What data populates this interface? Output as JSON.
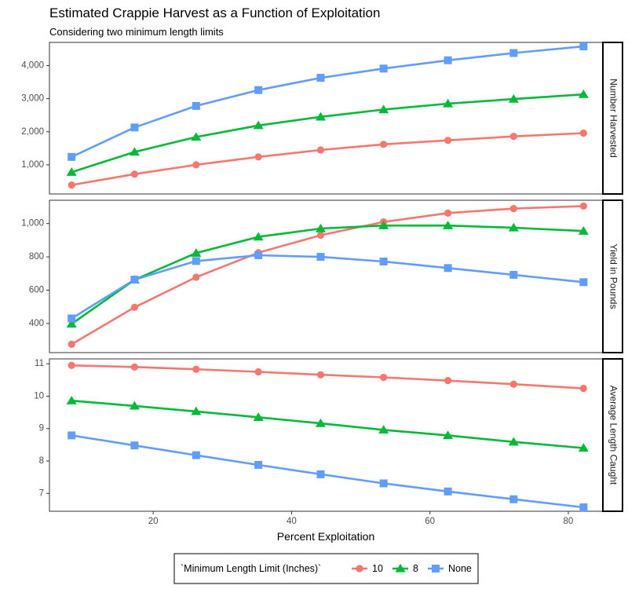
{
  "chart_data": {
    "type": "line",
    "title": "Estimated Crappie Harvest as a Function of Exploitation",
    "subtitle": "Considering two minimum length limits",
    "xlabel": "Percent Exploitation",
    "xlim": [
      5,
      85
    ],
    "x_ticks": [
      20,
      40,
      60,
      80
    ],
    "x": [
      8.2,
      17.3,
      26.2,
      35.2,
      44.2,
      53.3,
      62.6,
      72.1,
      82.2
    ],
    "legend": {
      "title": "`Minimum Length Limit (Inches)`",
      "position": "bottom",
      "entries": [
        "10",
        "8",
        "None"
      ]
    },
    "series_styles": [
      {
        "name": "10",
        "color": "#F8766D",
        "shape": "circle"
      },
      {
        "name": "8",
        "color": "#00BA38",
        "shape": "triangle"
      },
      {
        "name": "None",
        "color": "#619CFF",
        "shape": "square"
      }
    ],
    "panels": [
      {
        "strip": "Number Harvested",
        "ylim": [
          120,
          4700
        ],
        "y_ticks": [
          1000,
          2000,
          3000,
          4000
        ],
        "y_tick_labels": [
          "1,000",
          "2,000",
          "3,000",
          "4,000"
        ],
        "series": [
          {
            "name": "10",
            "values": [
              390,
              720,
              1000,
              1240,
              1450,
              1620,
              1740,
              1860,
              1960
            ]
          },
          {
            "name": "8",
            "values": [
              780,
              1390,
              1840,
              2190,
              2450,
              2670,
              2850,
              2990,
              3130
            ]
          },
          {
            "name": "None",
            "values": [
              1240,
              2130,
              2780,
              3260,
              3630,
              3910,
              4160,
              4380,
              4580
            ]
          }
        ]
      },
      {
        "strip": "Yield in Pounds",
        "ylim": [
          225,
          1140
        ],
        "y_ticks": [
          400,
          600,
          800,
          1000
        ],
        "y_tick_labels": [
          "400",
          "600",
          "800",
          "1,000"
        ],
        "series": [
          {
            "name": "10",
            "values": [
              275,
              497,
              678,
              825,
              930,
              1010,
              1063,
              1090,
              1105
            ]
          },
          {
            "name": "8",
            "values": [
              397,
              662,
              823,
              920,
              970,
              988,
              988,
              975,
              955
            ]
          },
          {
            "name": "None",
            "values": [
              430,
              663,
              775,
              810,
              800,
              772,
              733,
              692,
              648
            ]
          }
        ]
      },
      {
        "strip": "Average Length Caught",
        "ylim": [
          6.45,
          11.15
        ],
        "y_ticks": [
          7,
          8,
          9,
          10,
          11
        ],
        "y_tick_labels": [
          "7",
          "8",
          "9",
          "10",
          "11"
        ],
        "series": [
          {
            "name": "10",
            "values": [
              10.95,
              10.9,
              10.83,
              10.75,
              10.66,
              10.58,
              10.48,
              10.37,
              10.24
            ]
          },
          {
            "name": "8",
            "values": [
              9.86,
              9.7,
              9.53,
              9.35,
              9.16,
              8.96,
              8.79,
              8.59,
              8.4
            ]
          },
          {
            "name": "None",
            "values": [
              8.79,
              8.48,
              8.18,
              7.88,
              7.59,
              7.31,
              7.06,
              6.82,
              6.57
            ]
          }
        ]
      }
    ]
  }
}
